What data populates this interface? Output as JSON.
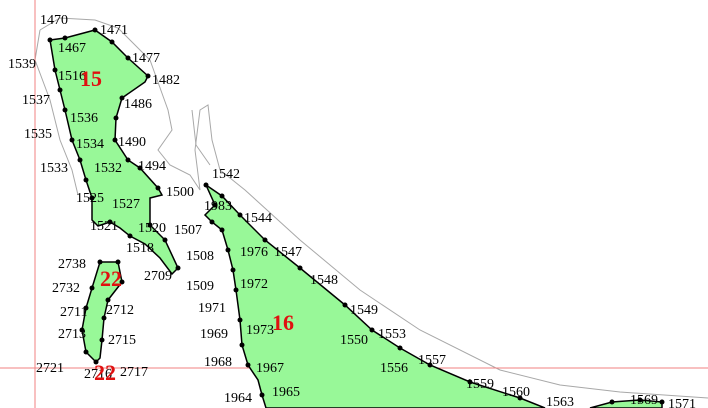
{
  "colors": {
    "fill": "#98f898",
    "outline": "#000000",
    "coastline": "#a8a8a8",
    "crosshair": "#f08080",
    "zone_label": "#e01010"
  },
  "zones": [
    {
      "id": "15",
      "label": "15"
    },
    {
      "id": "16",
      "label": "16"
    },
    {
      "id": "22a",
      "label": "22"
    },
    {
      "id": "22b",
      "label": "22"
    }
  ],
  "point_labels": [
    "1470",
    "1471",
    "1467",
    "1477",
    "1539",
    "1482",
    "1537",
    "1486",
    "1536",
    "1535",
    "1534",
    "1490",
    "1533",
    "1532",
    "1494",
    "1500",
    "1542",
    "1525",
    "1527",
    "1983",
    "1544",
    "1521",
    "1520",
    "1507",
    "1518",
    "1976",
    "1547",
    "1508",
    "2738",
    "2709",
    "1509",
    "1972",
    "1548",
    "2732",
    "2712",
    "1971",
    "1549",
    "1969",
    "1973",
    "1550",
    "1553",
    "2715",
    "1968",
    "1967",
    "1556",
    "1557",
    "2721",
    "2717",
    "1965",
    "1559",
    "1560",
    "1964",
    "1563",
    "1569",
    "1571",
    "1516",
    "2713",
    "2711",
    "2716"
  ]
}
